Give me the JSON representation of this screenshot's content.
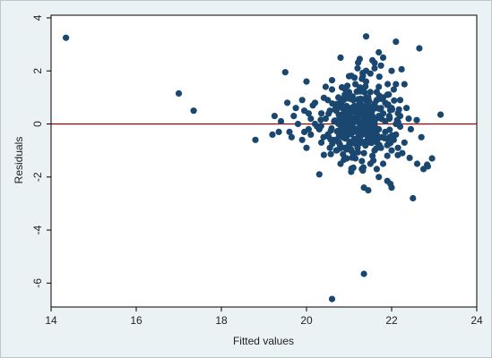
{
  "chart_data": {
    "type": "scatter",
    "title": "",
    "xlabel": "Fitted values",
    "ylabel": "Residuals",
    "xlim": [
      14,
      24
    ],
    "ylim": [
      -6.9,
      4.1
    ],
    "x_ticks": [
      14,
      16,
      18,
      20,
      22,
      24
    ],
    "y_ticks": [
      4,
      2,
      0,
      -2,
      -4,
      -6
    ],
    "reference_line": {
      "y": 0,
      "color": "#990000"
    },
    "grid": false,
    "colors": {
      "marker": "#1a476f",
      "background": "#eaf2f3",
      "plot_area": "#ffffff"
    },
    "series": [
      {
        "values": [
          [
            14.35,
            3.25
          ],
          [
            17.0,
            1.15
          ],
          [
            17.35,
            0.5
          ],
          [
            18.8,
            -0.6
          ],
          [
            19.2,
            -0.4
          ],
          [
            19.25,
            0.3
          ],
          [
            19.5,
            1.95
          ],
          [
            19.55,
            0.8
          ],
          [
            19.6,
            -0.3
          ],
          [
            19.9,
            -0.6
          ],
          [
            19.95,
            0.5
          ],
          [
            20.0,
            1.6
          ],
          [
            20.05,
            -0.2
          ],
          [
            20.1,
            0.2
          ],
          [
            20.3,
            -1.9
          ],
          [
            20.6,
            -6.6
          ],
          [
            20.7,
            -1.0
          ],
          [
            20.8,
            2.5
          ],
          [
            20.9,
            -0.9
          ],
          [
            21.0,
            1.8
          ],
          [
            21.05,
            -1.8
          ],
          [
            21.1,
            -1.1
          ],
          [
            21.2,
            2.1
          ],
          [
            21.3,
            -1.4
          ],
          [
            21.35,
            -2.4
          ],
          [
            21.35,
            -5.65
          ],
          [
            21.4,
            -0.3
          ],
          [
            21.4,
            3.3
          ],
          [
            21.45,
            -2.5
          ],
          [
            21.5,
            1.2
          ],
          [
            21.55,
            -1.2
          ],
          [
            21.6,
            2.1
          ],
          [
            21.7,
            -2.0
          ],
          [
            21.75,
            2.2
          ],
          [
            21.8,
            -1.5
          ],
          [
            21.85,
            0.8
          ],
          [
            21.9,
            -2.15
          ],
          [
            22.0,
            2.0
          ],
          [
            22.0,
            -2.4
          ],
          [
            22.1,
            3.1
          ],
          [
            22.1,
            1.5
          ],
          [
            22.2,
            -0.1
          ],
          [
            22.3,
            -0.7
          ],
          [
            22.4,
            0.2
          ],
          [
            22.5,
            -2.8
          ],
          [
            22.6,
            -1.5
          ],
          [
            22.65,
            2.85
          ],
          [
            22.7,
            -0.5
          ],
          [
            22.75,
            -1.7
          ],
          [
            22.85,
            -1.6
          ],
          [
            22.95,
            -1.3
          ],
          [
            23.15,
            0.35
          ],
          [
            20.2,
            0.0
          ],
          [
            20.35,
            0.4
          ],
          [
            20.4,
            -0.5
          ],
          [
            20.5,
            0.9
          ],
          [
            20.55,
            -0.9
          ],
          [
            20.6,
            1.3
          ],
          [
            20.65,
            0.1
          ],
          [
            20.75,
            -0.3
          ],
          [
            20.85,
            0.6
          ],
          [
            20.95,
            -1.3
          ],
          [
            21.0,
            0.3
          ],
          [
            21.1,
            0.9
          ],
          [
            21.15,
            -0.6
          ],
          [
            21.2,
            0.2
          ],
          [
            21.25,
            1.3
          ],
          [
            21.3,
            -0.2
          ],
          [
            21.4,
            0.5
          ],
          [
            21.5,
            -0.7
          ],
          [
            21.6,
            0.0
          ],
          [
            21.65,
            0.9
          ],
          [
            21.7,
            -0.2
          ],
          [
            21.8,
            0.4
          ],
          [
            21.9,
            -0.8
          ],
          [
            22.0,
            0.6
          ],
          [
            22.1,
            -0.4
          ],
          [
            21.0,
            -0.8
          ],
          [
            21.2,
            -0.9
          ],
          [
            21.4,
            1.6
          ],
          [
            21.5,
            1.9
          ],
          [
            21.3,
            1.7
          ],
          [
            21.6,
            -1.0
          ],
          [
            20.9,
            1.1
          ],
          [
            21.7,
            1.4
          ],
          [
            19.8,
            0.0
          ],
          [
            19.7,
            0.3
          ],
          [
            20.0,
            -0.9
          ],
          [
            20.15,
            0.7
          ],
          [
            20.25,
            -0.1
          ],
          [
            20.45,
            1.4
          ],
          [
            20.8,
            -1.5
          ],
          [
            21.9,
            1.1
          ],
          [
            22.2,
            0.9
          ],
          [
            22.3,
            1.5
          ],
          [
            22.25,
            -1.1
          ],
          [
            21.55,
            2.4
          ],
          [
            21.25,
            2.45
          ],
          [
            20.6,
            1.65
          ],
          [
            21.1,
            -1.65
          ],
          [
            20.3,
            -0.2
          ],
          [
            20.7,
            0.5
          ],
          [
            20.9,
            0.0
          ],
          [
            21.05,
            0.45
          ],
          [
            21.2,
            -0.3
          ],
          [
            21.35,
            0.1
          ],
          [
            21.45,
            -0.1
          ],
          [
            21.55,
            0.3
          ],
          [
            21.65,
            -0.4
          ],
          [
            21.75,
            0.6
          ],
          [
            21.85,
            -0.3
          ],
          [
            21.95,
            0.2
          ],
          [
            22.05,
            -0.6
          ],
          [
            22.15,
            0.4
          ],
          [
            20.5,
            -0.4
          ],
          [
            20.65,
            -0.6
          ],
          [
            20.8,
            0.8
          ],
          [
            21.0,
            1.2
          ],
          [
            21.3,
            0.7
          ],
          [
            21.45,
            1.0
          ],
          [
            21.6,
            0.6
          ],
          [
            21.75,
            -0.9
          ],
          [
            21.8,
            1.0
          ],
          [
            21.95,
            -0.5
          ],
          [
            22.05,
            1.3
          ],
          [
            22.15,
            -0.9
          ],
          [
            22.35,
            0.6
          ],
          [
            22.45,
            -0.2
          ],
          [
            19.35,
            -0.3
          ],
          [
            19.4,
            0.1
          ],
          [
            19.65,
            -0.5
          ],
          [
            19.75,
            0.6
          ],
          [
            19.9,
            0.9
          ],
          [
            19.95,
            -0.3
          ],
          [
            20.05,
            0.4
          ],
          [
            20.1,
            -0.4
          ],
          [
            20.2,
            0.8
          ],
          [
            20.35,
            -0.7
          ],
          [
            20.45,
            0.2
          ],
          [
            20.55,
            0.5
          ],
          [
            20.75,
            1.0
          ],
          [
            20.85,
            -0.5
          ],
          [
            20.95,
            0.4
          ],
          [
            21.05,
            -1.0
          ],
          [
            21.15,
            1.5
          ],
          [
            21.25,
            -0.5
          ],
          [
            21.35,
            -1.1
          ],
          [
            21.45,
            0.4
          ],
          [
            21.55,
            -0.5
          ],
          [
            21.65,
            1.2
          ],
          [
            21.7,
            0.3
          ],
          [
            21.85,
            0.1
          ],
          [
            21.9,
            -1.2
          ],
          [
            22.0,
            -1.0
          ],
          [
            22.1,
            0.0
          ],
          [
            22.2,
            0.3
          ],
          [
            21.15,
            -1.3
          ],
          [
            21.3,
            -1.7
          ],
          [
            21.5,
            -1.5
          ],
          [
            21.65,
            -1.7
          ],
          [
            21.4,
            2.0
          ],
          [
            21.7,
            2.7
          ],
          [
            21.8,
            2.5
          ],
          [
            21.6,
            2.3
          ]
        ]
      }
    ]
  }
}
